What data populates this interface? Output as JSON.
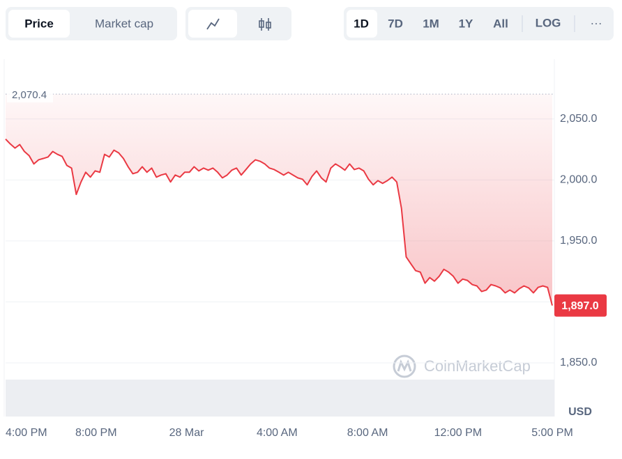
{
  "ui": {
    "tabs": [
      "Price",
      "Market cap"
    ],
    "ranges": [
      "1D",
      "7D",
      "1M",
      "1Y",
      "All"
    ],
    "log": "LOG",
    "more": "···"
  },
  "chart_data": {
    "type": "line",
    "watermark": "CoinMarketCap",
    "y_unit": "USD",
    "color": "#ea3943",
    "grid": true,
    "xlim": [
      0,
      1450
    ],
    "xticks": [
      {
        "value": 0,
        "label": "4:00 PM"
      },
      {
        "value": 240,
        "label": "8:00 PM"
      },
      {
        "value": 480,
        "label": "28 Mar"
      },
      {
        "value": 720,
        "label": "4:00 AM"
      },
      {
        "value": 960,
        "label": "8:00 AM"
      },
      {
        "value": 1200,
        "label": "12:00 PM"
      },
      {
        "value": 1450,
        "label": "5:00 PM"
      }
    ],
    "ylim": [
      1806,
      2099
    ],
    "yticks": [
      {
        "value": 1850,
        "label": "1,850.0"
      },
      {
        "value": 1900,
        "label": null
      },
      {
        "value": 1950,
        "label": "1,950.0"
      },
      {
        "value": 2000,
        "label": "2,000.0"
      },
      {
        "value": 2050,
        "label": "2,050.0"
      }
    ],
    "max_marker": {
      "value": 2070.4,
      "label": "2,070.4"
    },
    "last_price": {
      "value": 1897.0,
      "label": "1,897.0"
    },
    "x": [
      0,
      12.5,
      25,
      37.5,
      50,
      62.5,
      75,
      87.5,
      100,
      112.5,
      125,
      137.5,
      150,
      162.5,
      175,
      187.5,
      200,
      212.5,
      225,
      237.5,
      250,
      262.5,
      275,
      287.5,
      300,
      312.5,
      325,
      337.5,
      350,
      362.5,
      375,
      387.5,
      400,
      412.5,
      425,
      437.5,
      450,
      462.5,
      475,
      487.5,
      500,
      512.5,
      525,
      537.5,
      550,
      562.5,
      575,
      587.5,
      600,
      612.5,
      625,
      637.5,
      650,
      662.5,
      675,
      687.5,
      700,
      712.5,
      725,
      737.5,
      750,
      762.5,
      775,
      787.5,
      800,
      812.5,
      825,
      837.5,
      850,
      862.5,
      875,
      887.5,
      900,
      912.5,
      925,
      937.5,
      950,
      962.5,
      975,
      987.5,
      1000,
      1012.5,
      1025,
      1037.5,
      1050,
      1062.5,
      1075,
      1087.5,
      1100,
      1112.5,
      1125,
      1137.5,
      1150,
      1162.5,
      1175,
      1187.5,
      1200,
      1212.5,
      1225,
      1237.5,
      1250,
      1262.5,
      1275,
      1287.5,
      1300,
      1312.5,
      1325,
      1337.5,
      1350,
      1362.5,
      1375,
      1387.5,
      1400,
      1412.5,
      1425,
      1437.5,
      1450
    ],
    "values": [
      2033.5,
      2029.5,
      2026.1,
      2029.0,
      2023.3,
      2019.9,
      2013.1,
      2016.5,
      2017.6,
      2018.8,
      2023.3,
      2021.0,
      2019.3,
      2011.9,
      2009.7,
      1988.1,
      1998.3,
      2006.3,
      2002.3,
      2007.4,
      2006.3,
      2021.0,
      2018.8,
      2024.4,
      2022.2,
      2017.6,
      2010.8,
      2005.1,
      2006.3,
      2010.8,
      2006.3,
      2009.7,
      2002.3,
      2004.0,
      2005.1,
      1998.3,
      2004.0,
      2002.3,
      2006.3,
      2006.3,
      2010.8,
      2007.4,
      2009.7,
      2008.0,
      2009.7,
      2006.3,
      2001.7,
      2004.0,
      2008.0,
      2009.7,
      2004.0,
      2008.5,
      2013.1,
      2016.5,
      2015.3,
      2013.1,
      2009.7,
      2008.5,
      2006.3,
      2004.0,
      2006.3,
      2004.0,
      2001.7,
      2000.6,
      1996.0,
      2002.8,
      2007.4,
      2001.7,
      1998.3,
      2009.7,
      2013.1,
      2010.8,
      2008.0,
      2013.1,
      2008.5,
      2009.7,
      2007.4,
      2000.6,
      1996.0,
      1999.4,
      1997.2,
      1999.4,
      2002.3,
      1998.3,
      1976.7,
      1936.9,
      1931.2,
      1925.6,
      1924.4,
      1915.3,
      1919.9,
      1917.0,
      1921.0,
      1926.7,
      1924.4,
      1921.0,
      1915.3,
      1918.7,
      1917.6,
      1914.2,
      1913.1,
      1908.5,
      1909.7,
      1914.2,
      1913.1,
      1911.4,
      1907.4,
      1909.7,
      1907.4,
      1910.8,
      1913.1,
      1911.4,
      1907.4,
      1911.9,
      1913.1,
      1911.9,
      1897.0
    ]
  }
}
